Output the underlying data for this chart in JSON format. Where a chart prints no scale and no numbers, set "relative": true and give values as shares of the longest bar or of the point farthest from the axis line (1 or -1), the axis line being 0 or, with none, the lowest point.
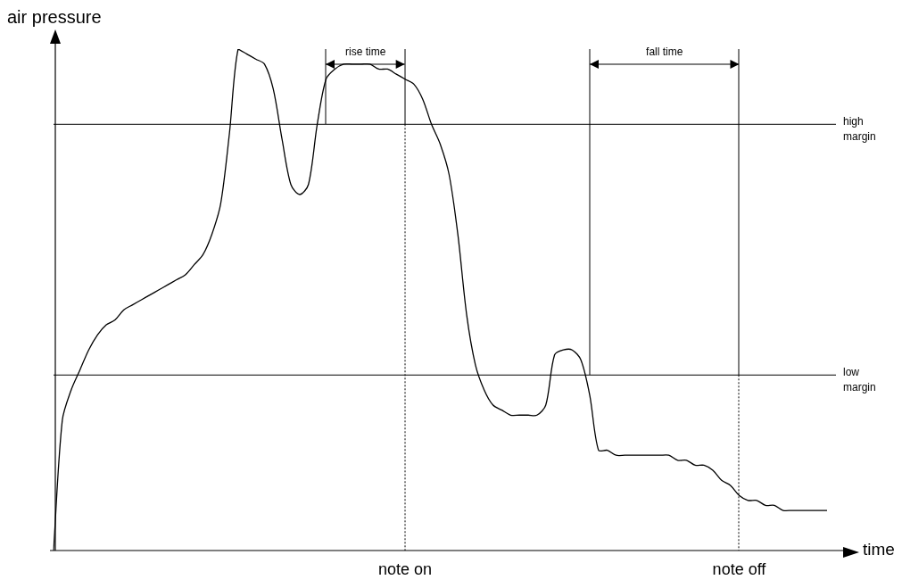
{
  "chart_data": {
    "type": "line",
    "relative": true,
    "xlabel": "time",
    "ylabel": "air pressure",
    "categories": [
      null,
      null,
      null,
      null,
      null,
      null,
      null,
      null,
      null,
      null,
      null,
      null,
      null,
      null,
      null,
      null,
      null,
      null,
      null,
      null,
      null,
      null,
      null,
      null,
      null,
      null,
      null,
      null,
      null,
      null,
      null,
      null,
      null,
      null,
      null,
      null,
      null,
      null,
      null,
      null,
      null,
      null,
      null,
      null,
      null,
      null,
      null,
      null,
      null,
      null,
      null,
      null,
      null,
      null,
      null,
      null,
      null,
      null,
      null,
      null,
      null,
      null,
      null,
      null,
      null,
      null,
      null,
      null,
      null,
      null,
      null,
      null,
      null,
      null,
      null,
      null,
      null,
      null,
      null,
      null,
      null,
      null,
      null,
      null,
      null,
      null,
      null,
      null,
      null
    ],
    "series": [
      {
        "color": "#000000",
        "values": [
          0,
          0.26,
          0.32,
          0.36,
          0.4,
          0.43,
          0.45,
          0.46,
          0.48,
          0.49,
          0.5,
          0.51,
          0.52,
          0.53,
          0.54,
          0.55,
          0.57,
          0.59,
          0.63,
          0.69,
          0.83,
          1,
          0.99,
          0.98,
          0.97,
          0.92,
          0.82,
          0.73,
          0.71,
          0.73,
          0.85,
          0.94,
          0.96,
          0.97,
          0.97,
          0.97,
          0.97,
          0.96,
          0.96,
          0.95,
          0.94,
          0.93,
          0.9,
          0.85,
          0.81,
          0.75,
          0.63,
          0.47,
          0.37,
          0.32,
          0.29,
          0.28,
          0.27,
          0.27,
          0.27,
          0.27,
          0.29,
          0.39,
          0.4,
          0.4,
          0.38,
          0.31,
          0.2,
          0.2,
          0.19,
          0.19,
          0.19,
          0.19,
          0.19,
          0.19,
          0.19,
          0.18,
          0.18,
          0.17,
          0.17,
          0.16,
          0.14,
          0.13,
          0.11,
          0.1,
          0.1,
          0.09,
          0.09,
          0.08,
          0.08,
          0.08,
          0.08,
          0.08,
          0.08
        ]
      }
    ],
    "marker": "none",
    "line_style": "solid",
    "grid": false,
    "legend": false,
    "ref_lines": [
      {
        "axis": "y",
        "value": 0.85,
        "label": "high margin"
      },
      {
        "axis": "y",
        "value": 0.35,
        "label": "low margin"
      }
    ],
    "annotations": [
      "rise time",
      "fall time",
      "note on",
      "note off"
    ]
  }
}
